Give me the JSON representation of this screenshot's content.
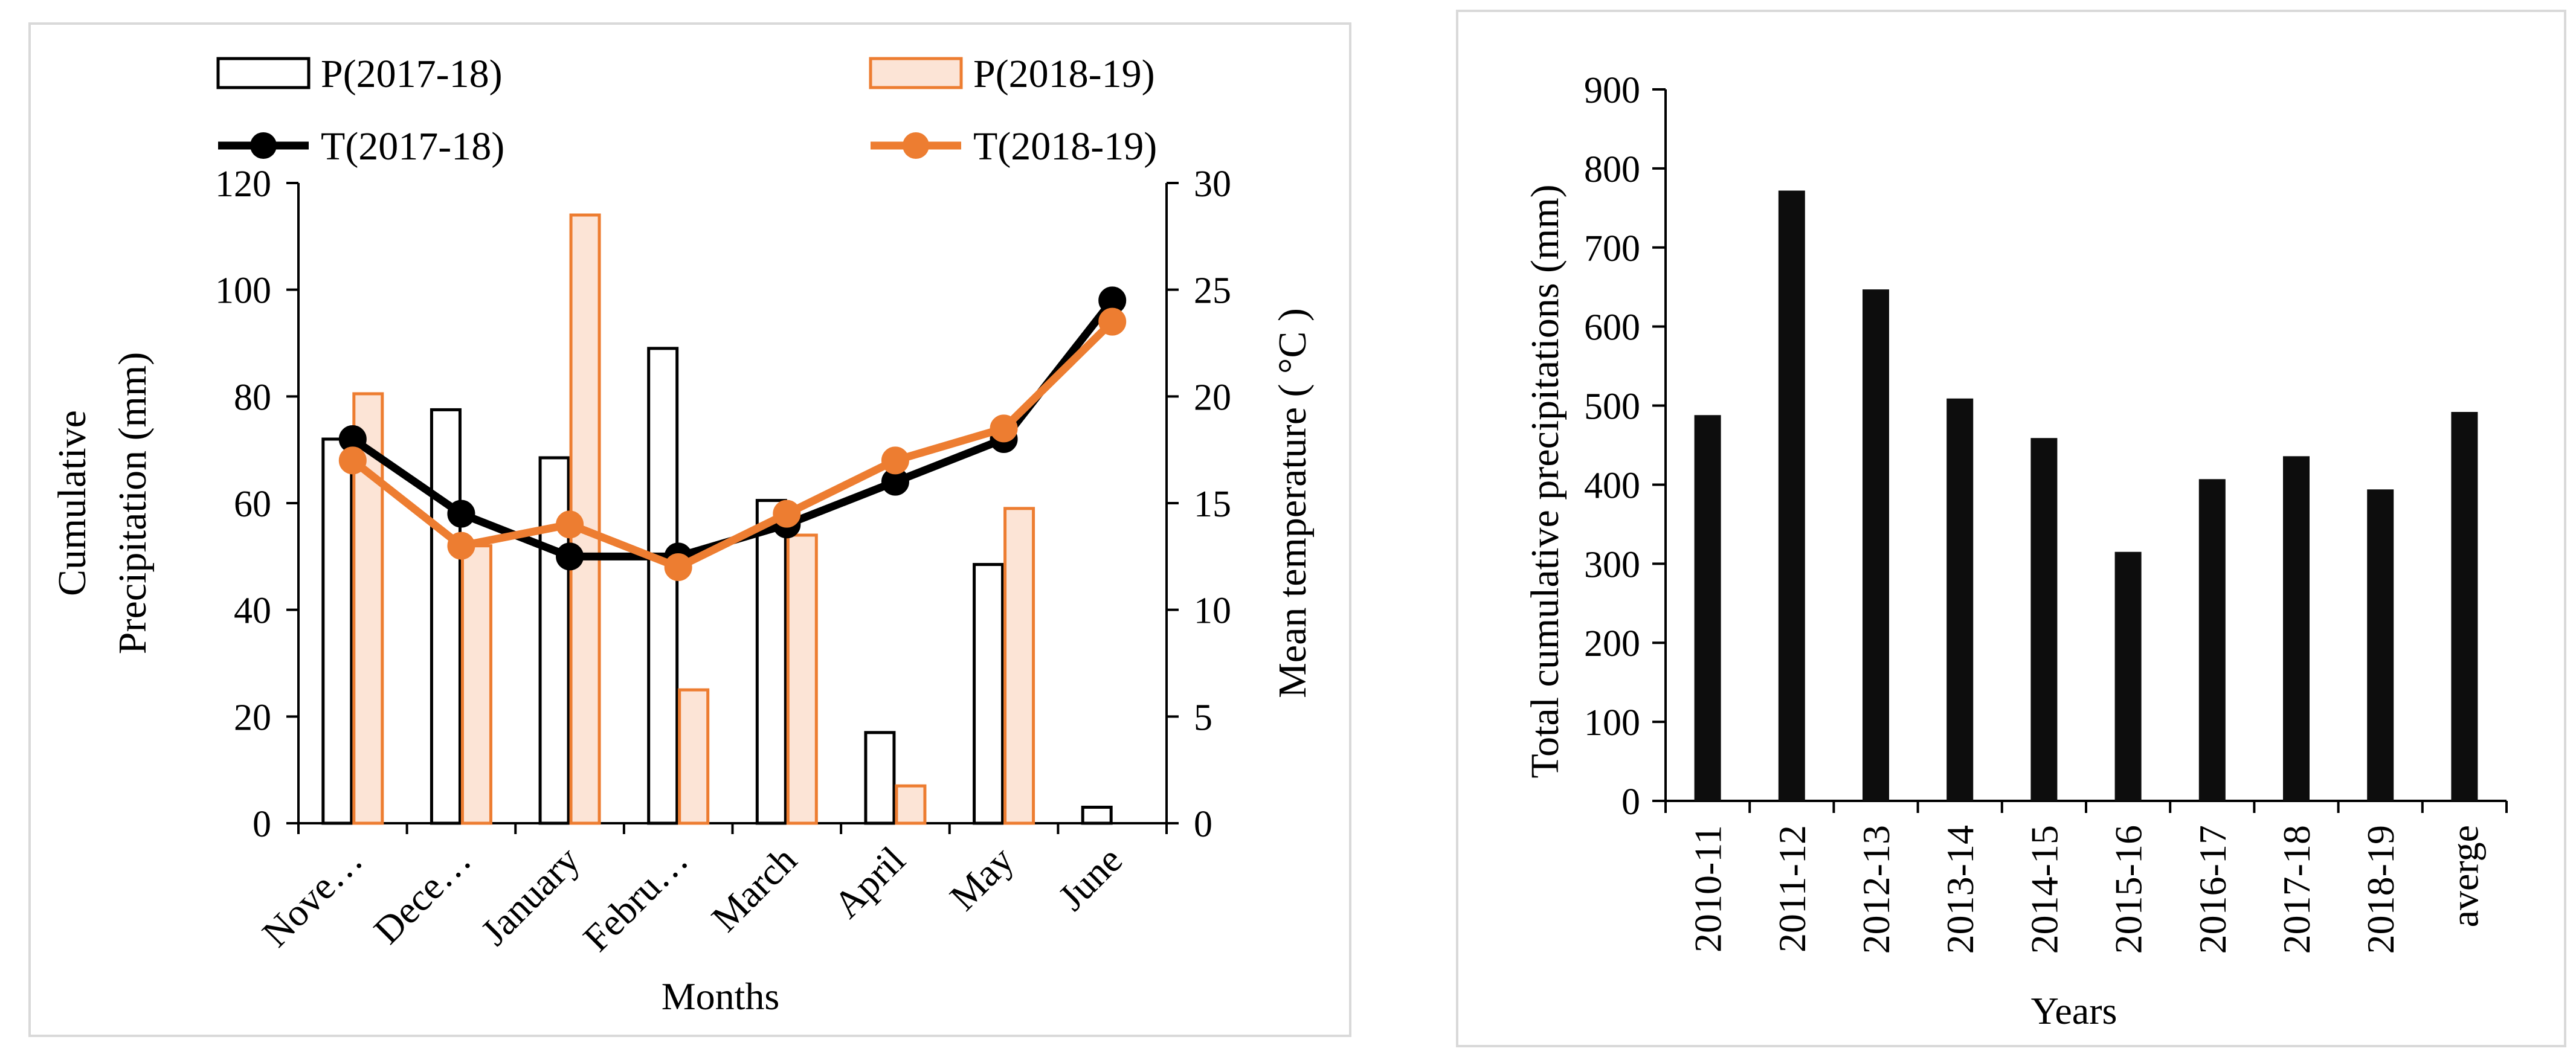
{
  "chart_data": [
    {
      "type": "bar+line",
      "legend": [
        {
          "label": "P(2017-18)",
          "kind": "bar",
          "fill": "#ffffff",
          "stroke": "#000000"
        },
        {
          "label": "P(2018-19)",
          "kind": "bar",
          "fill": "#fce4d6",
          "stroke": "#ed7d31"
        },
        {
          "label": "T(2017-18)",
          "kind": "line",
          "color": "#000000"
        },
        {
          "label": "T(2018-19)",
          "kind": "line",
          "color": "#ed7d31"
        }
      ],
      "legend_position": "top",
      "categories": [
        "Nove…",
        "Dece…",
        "January",
        "Febru…",
        "March",
        "April",
        "May",
        "June"
      ],
      "bar_series": [
        {
          "name": "P(2017-18)",
          "values": [
            72,
            77.5,
            68.5,
            89,
            60.5,
            17,
            48.5,
            3
          ]
        },
        {
          "name": "P(2018-19)",
          "values": [
            80.5,
            52,
            114,
            25,
            54,
            7,
            59,
            0
          ]
        }
      ],
      "line_series": [
        {
          "name": "T(2017-18)",
          "values": [
            18,
            14.5,
            12.5,
            12.5,
            14,
            16,
            18,
            24.5
          ]
        },
        {
          "name": "T(2018-19)",
          "values": [
            17,
            13,
            14,
            12,
            14.5,
            17,
            18.5,
            23.5
          ]
        }
      ],
      "xlabel": "Months",
      "ylabel_left": [
        "Cumulative",
        "Precipitation (mm)"
      ],
      "ylabel_right": "Mean temperature ( °C )",
      "ylim_left": [
        0,
        120
      ],
      "ylim_right": [
        0,
        30
      ],
      "yticks_left": [
        "0",
        "20",
        "40",
        "60",
        "80",
        "100",
        "120"
      ],
      "yticks_right": [
        "0",
        "5",
        "10",
        "15",
        "20",
        "25",
        "30"
      ],
      "grid": false
    },
    {
      "type": "bar",
      "categories": [
        "2010-11",
        "2011-12",
        "2012-13",
        "2013-14",
        "2014-15",
        "2015-16",
        "2016-17",
        "2017-18",
        "2018-19",
        "averge"
      ],
      "values": [
        488,
        772,
        647,
        509,
        459,
        315,
        407,
        436,
        394,
        492
      ],
      "bar_color": "#0d0d0d",
      "xlabel": "Years",
      "ylabel": "Total cumulative precipitations (mm)",
      "ylim": [
        0,
        900
      ],
      "yticks": [
        "0",
        "100",
        "200",
        "300",
        "400",
        "500",
        "600",
        "700",
        "800",
        "900"
      ],
      "grid": false
    }
  ]
}
